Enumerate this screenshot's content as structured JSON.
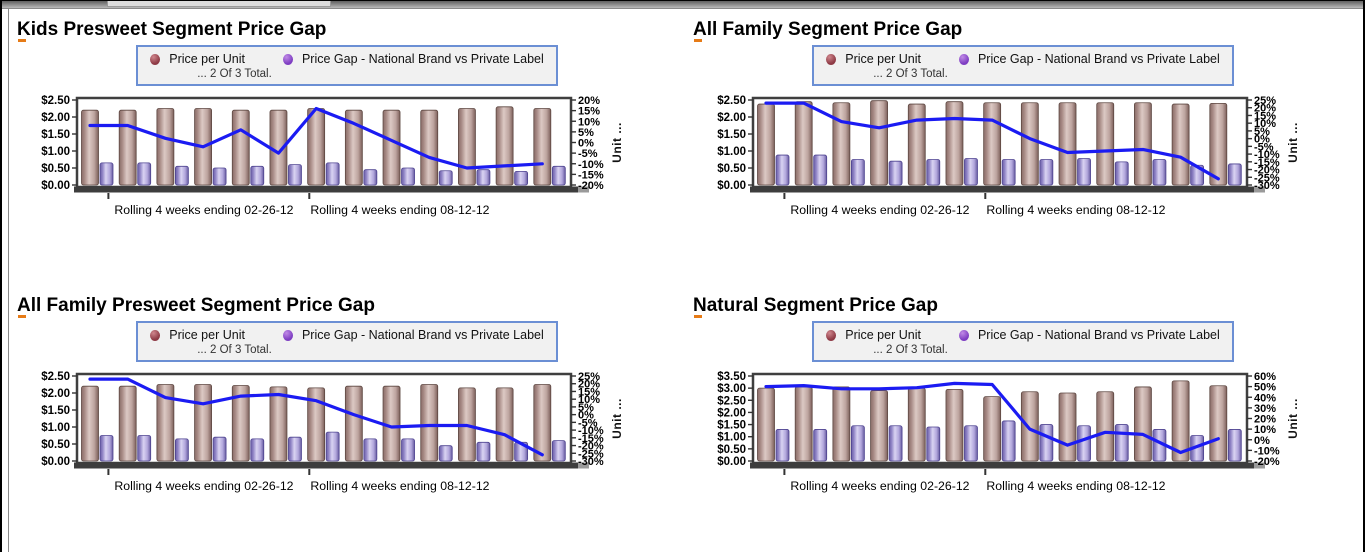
{
  "legend": {
    "items": [
      {
        "label": "Price per Unit",
        "color": "#8e3a45"
      },
      {
        "label": "Price Gap - National Brand vs Private Label",
        "color": "#7e3ec2"
      }
    ],
    "note": "... 2 Of 3 Total."
  },
  "colors": {
    "bar_primary": "#b59a95",
    "bar_secondary": "#b2a7dc",
    "line": "#1b1bf2",
    "frame": "#3f3f3f",
    "axis_base": "#3d3d3d",
    "legend_border": "#6b8fd4"
  },
  "chart_data": [
    {
      "type": "bar",
      "title": "Kids Presweet Segment Price Gap",
      "x_labels": [
        "Rolling 4 weeks ending 02-26-12",
        "Rolling 4 weeks ending 08-12-12"
      ],
      "left_axis": {
        "min": 0,
        "max": 2.5,
        "ticks": [
          "$2.50",
          "$2.00",
          "$1.50",
          "$1.00",
          "$0.50",
          "$0.00"
        ]
      },
      "right_axis": {
        "min": -20,
        "max": 20,
        "label": "Unit ...",
        "ticks": [
          "20%",
          "15%",
          "10%",
          "5%",
          "0%",
          "-5%",
          "-10%",
          "-15%",
          "-20%"
        ]
      },
      "series": [
        {
          "name": "Price per Unit",
          "type": "bar",
          "axis": "left",
          "values": [
            2.2,
            2.2,
            2.25,
            2.25,
            2.2,
            2.2,
            2.25,
            2.2,
            2.2,
            2.2,
            2.25,
            2.3,
            2.25
          ]
        },
        {
          "name": "Price Gap - National Brand vs Private Label",
          "type": "bar",
          "axis": "left",
          "values": [
            0.65,
            0.65,
            0.55,
            0.5,
            0.55,
            0.6,
            0.65,
            0.45,
            0.5,
            0.42,
            0.45,
            0.4,
            0.55
          ]
        },
        {
          "name": "price-gap-trend-pct",
          "type": "line",
          "axis": "right",
          "values": [
            8,
            8,
            2,
            -2,
            6,
            -5,
            16,
            9,
            1,
            -7,
            -12,
            -11,
            -10
          ]
        }
      ]
    },
    {
      "type": "bar",
      "title": "All Family Segment Price Gap",
      "x_labels": [
        "Rolling 4 weeks ending 02-26-12",
        "Rolling 4 weeks ending 08-12-12"
      ],
      "left_axis": {
        "min": 0,
        "max": 2.5,
        "ticks": [
          "$2.50",
          "$2.00",
          "$1.50",
          "$1.00",
          "$0.50",
          "$0.00"
        ]
      },
      "right_axis": {
        "min": -30,
        "max": 25,
        "label": "Unit ...",
        "ticks": [
          "25%",
          "20%",
          "15%",
          "10%",
          "5%",
          "0%",
          "-5%",
          "-10%",
          "-15%",
          "-20%",
          "-25%",
          "-30%"
        ]
      },
      "series": [
        {
          "name": "Price per Unit",
          "type": "bar",
          "axis": "left",
          "values": [
            2.38,
            2.45,
            2.42,
            2.48,
            2.38,
            2.45,
            2.42,
            2.42,
            2.42,
            2.42,
            2.42,
            2.38,
            2.4
          ]
        },
        {
          "name": "Price Gap - National Brand vs Private Label",
          "type": "bar",
          "axis": "left",
          "values": [
            0.88,
            0.88,
            0.75,
            0.7,
            0.75,
            0.78,
            0.75,
            0.75,
            0.78,
            0.68,
            0.75,
            0.58,
            0.62
          ]
        },
        {
          "name": "price-gap-trend-pct",
          "type": "line",
          "axis": "right",
          "values": [
            23,
            23,
            11,
            7,
            12,
            13,
            12,
            0,
            -9,
            -8,
            -7,
            -12,
            -26
          ]
        }
      ]
    },
    {
      "type": "bar",
      "title": "All Family Presweet Segment Price Gap",
      "x_labels": [
        "Rolling 4 weeks ending 02-26-12",
        "Rolling 4 weeks ending 08-12-12"
      ],
      "left_axis": {
        "min": 0,
        "max": 2.5,
        "ticks": [
          "$2.50",
          "$2.00",
          "$1.50",
          "$1.00",
          "$0.50",
          "$0.00"
        ]
      },
      "right_axis": {
        "min": -30,
        "max": 25,
        "label": "Unit ...",
        "ticks": [
          "25%",
          "20%",
          "15%",
          "10%",
          "5%",
          "0%",
          "-5%",
          "-10%",
          "-15%",
          "-20%",
          "-25%",
          "-30%"
        ]
      },
      "series": [
        {
          "name": "Price per Unit",
          "type": "bar",
          "axis": "left",
          "values": [
            2.2,
            2.2,
            2.25,
            2.25,
            2.22,
            2.18,
            2.15,
            2.2,
            2.2,
            2.25,
            2.15,
            2.15,
            2.25
          ]
        },
        {
          "name": "Price Gap - National Brand vs Private Label",
          "type": "bar",
          "axis": "left",
          "values": [
            0.75,
            0.75,
            0.65,
            0.7,
            0.65,
            0.7,
            0.85,
            0.65,
            0.65,
            0.45,
            0.55,
            0.55,
            0.6
          ]
        },
        {
          "name": "price-gap-trend-pct",
          "type": "line",
          "axis": "right",
          "values": [
            23,
            23,
            11,
            7,
            12,
            13,
            9,
            0,
            -8,
            -7,
            -7,
            -13,
            -26
          ]
        }
      ]
    },
    {
      "type": "bar",
      "title": "Natural Segment Price Gap",
      "x_labels": [
        "Rolling 4 weeks ending 02-26-12",
        "Rolling 4 weeks ending 08-12-12"
      ],
      "left_axis": {
        "min": 0,
        "max": 3.5,
        "ticks": [
          "$3.50",
          "$3.00",
          "$2.50",
          "$2.00",
          "$1.50",
          "$1.00",
          "$0.50",
          "$0.00"
        ]
      },
      "right_axis": {
        "min": -20,
        "max": 60,
        "label": "Unit ...",
        "ticks": [
          "60%",
          "50%",
          "40%",
          "30%",
          "20%",
          "10%",
          "0%",
          "-10%",
          "-20%"
        ]
      },
      "series": [
        {
          "name": "Price per Unit",
          "type": "bar",
          "axis": "left",
          "values": [
            3.0,
            3.05,
            3.05,
            2.9,
            3.0,
            2.95,
            2.65,
            2.85,
            2.8,
            2.85,
            3.05,
            3.3,
            3.1
          ]
        },
        {
          "name": "Price Gap - National Brand vs Private Label",
          "type": "bar",
          "axis": "left",
          "values": [
            1.3,
            1.3,
            1.45,
            1.45,
            1.4,
            1.45,
            1.65,
            1.5,
            1.45,
            1.5,
            1.3,
            1.05,
            1.3
          ]
        },
        {
          "name": "price-gap-trend-pct",
          "type": "line",
          "axis": "right",
          "values": [
            50,
            51,
            48,
            48,
            49,
            53,
            52,
            10,
            -5,
            7,
            5,
            -12,
            1
          ]
        }
      ]
    }
  ]
}
